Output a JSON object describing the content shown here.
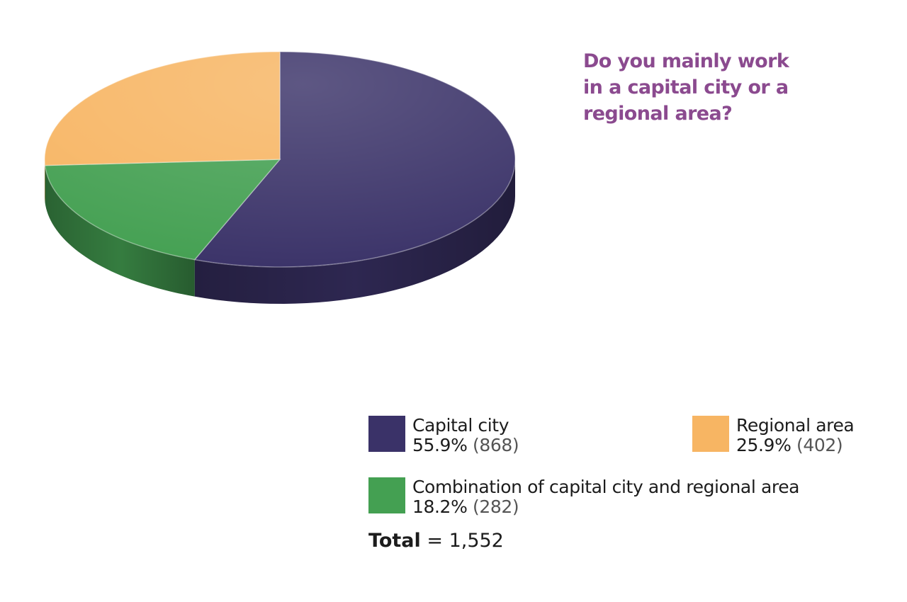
{
  "title": "Do you mainly work in a capital city or a regional area?",
  "chart_data": {
    "type": "pie",
    "title": "Do you mainly work in a capital city or a regional area?",
    "slices": [
      {
        "label": "Capital city",
        "percent": 55.9,
        "count": "(868)",
        "percent_text": "55.9%",
        "color": "#3a3268"
      },
      {
        "label": "Combination of capital city and regional area",
        "percent": 18.2,
        "count": "(282)",
        "percent_text": "18.2%",
        "color": "#44a052"
      },
      {
        "label": "Regional area",
        "percent": 25.9,
        "count": "(402)",
        "percent_text": "25.9%",
        "color": "#f7b563"
      }
    ],
    "legend_placement": "bottom-right",
    "total_label": "Total",
    "total_value": "= 1,552"
  },
  "colors": {
    "title": "#8b4a8f",
    "capital": "#3a3268",
    "combination": "#44a052",
    "regional": "#f7b563"
  }
}
